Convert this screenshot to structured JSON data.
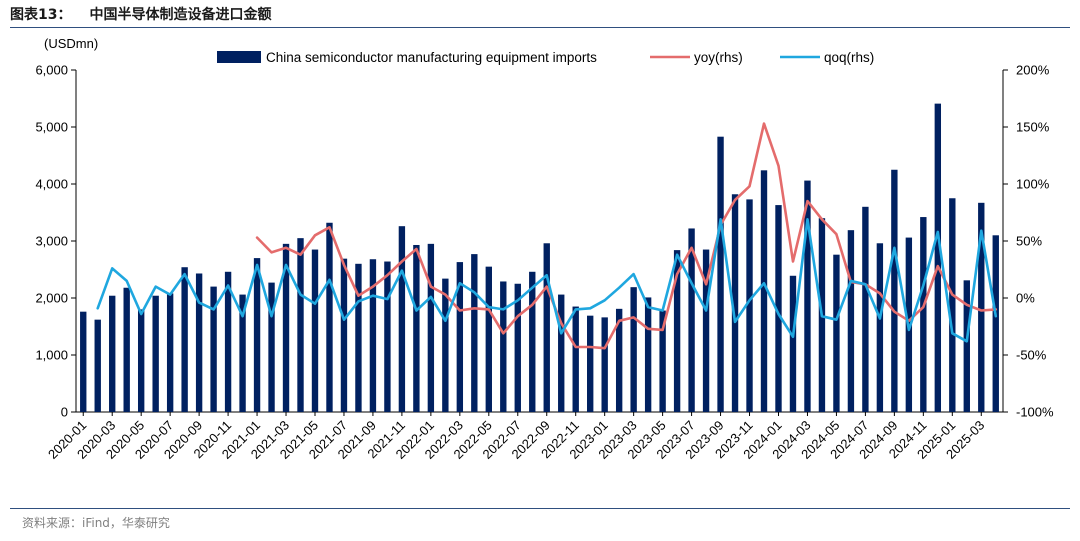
{
  "figure": {
    "label": "图表13：",
    "title": "中国半导体制造设备进口金额",
    "source": "资料来源：iFind，华泰研究"
  },
  "chart_data": {
    "type": "bar",
    "units_left": "(USDmn)",
    "x": [
      "2020-01",
      "2020-02",
      "2020-03",
      "2020-04",
      "2020-05",
      "2020-06",
      "2020-07",
      "2020-08",
      "2020-09",
      "2020-10",
      "2020-11",
      "2020-12",
      "2021-01",
      "2021-02",
      "2021-03",
      "2021-04",
      "2021-05",
      "2021-06",
      "2021-07",
      "2021-08",
      "2021-09",
      "2021-10",
      "2021-11",
      "2021-12",
      "2022-01",
      "2022-02",
      "2022-03",
      "2022-04",
      "2022-05",
      "2022-06",
      "2022-07",
      "2022-08",
      "2022-09",
      "2022-10",
      "2022-11",
      "2022-12",
      "2023-01",
      "2023-02",
      "2023-03",
      "2023-04",
      "2023-05",
      "2023-06",
      "2023-07",
      "2023-08",
      "2023-09",
      "2023-10",
      "2023-11",
      "2023-12",
      "2024-01",
      "2024-02",
      "2024-03",
      "2024-04",
      "2024-05",
      "2024-06",
      "2024-07",
      "2024-08",
      "2024-09",
      "2024-10",
      "2024-11",
      "2024-12",
      "2025-01",
      "2025-02",
      "2025-03",
      "2025-04"
    ],
    "x_tick_labels": [
      "2020-01",
      "2020-03",
      "2020-05",
      "2020-07",
      "2020-09",
      "2020-11",
      "2021-01",
      "2021-03",
      "2021-05",
      "2021-07",
      "2021-09",
      "2021-11",
      "2022-01",
      "2022-03",
      "2022-05",
      "2022-07",
      "2022-09",
      "2022-11",
      "2023-01",
      "2023-03",
      "2023-05",
      "2023-07",
      "2023-09",
      "2023-11",
      "2024-01",
      "2024-03",
      "2024-05",
      "2024-07",
      "2024-09",
      "2024-11",
      "2025-01",
      "2025-03"
    ],
    "y_left": {
      "min": 0,
      "max": 6000,
      "ticks": [
        "0",
        "1,000",
        "2,000",
        "3,000",
        "4,000",
        "5,000",
        "6,000"
      ]
    },
    "y_right": {
      "min": -100,
      "max": 200,
      "ticks": [
        "-100%",
        "-50%",
        "0%",
        "50%",
        "100%",
        "150%",
        "200%"
      ]
    },
    "grid": false,
    "legend_position": "top",
    "series": [
      {
        "name": "China semiconductor manufacturing equipment imports",
        "kind": "bar",
        "axis": "left",
        "color": "#002060",
        "values": [
          1760,
          1620,
          2040,
          2180,
          1800,
          2040,
          2080,
          2540,
          2430,
          2200,
          2460,
          2060,
          2700,
          2270,
          2950,
          3050,
          2850,
          3320,
          2690,
          2600,
          2680,
          2640,
          3260,
          2930,
          2950,
          2340,
          2630,
          2770,
          2550,
          2290,
          2250,
          2460,
          2960,
          2060,
          1850,
          1690,
          1660,
          1810,
          2190,
          2010,
          1780,
          2840,
          3220,
          2850,
          4830,
          3820,
          3730,
          4240,
          3630,
          2390,
          4060,
          3400,
          2760,
          3190,
          3600,
          2960,
          4250,
          3060,
          3420,
          5410,
          3750,
          2310,
          3670,
          3100
        ]
      },
      {
        "name": "yoy(rhs)",
        "kind": "line",
        "axis": "right",
        "color": "#E46C6C",
        "values": [
          null,
          null,
          null,
          null,
          null,
          null,
          null,
          null,
          null,
          null,
          null,
          null,
          53,
          40,
          44,
          38,
          55,
          62,
          29,
          2,
          10,
          20,
          32,
          43,
          10,
          3,
          -11,
          -9,
          -10,
          -31,
          -16,
          -6,
          10,
          -22,
          -43,
          -43,
          -44,
          -20,
          -17,
          -27,
          -28,
          21,
          44,
          12,
          64,
          86,
          98,
          153,
          116,
          32,
          85,
          69,
          56,
          14,
          12,
          4,
          -12,
          -20,
          -8,
          28,
          3,
          -6,
          -11,
          -10
        ]
      },
      {
        "name": "qoq(rhs)",
        "kind": "line",
        "axis": "right",
        "color": "#1FA7DF",
        "values": [
          null,
          -9,
          26,
          15,
          -14,
          10,
          3,
          21,
          -4,
          -10,
          11,
          -16,
          29,
          -16,
          29,
          3,
          -5,
          16,
          -19,
          -3,
          2,
          -1,
          24,
          -11,
          1,
          -20,
          13,
          5,
          -8,
          -10,
          -2,
          9,
          20,
          -31,
          -10,
          -9,
          -2,
          9,
          21,
          -8,
          -11,
          38,
          13,
          -11,
          69,
          -21,
          -2,
          13,
          -14,
          -34,
          69,
          -16,
          -19,
          15,
          12,
          -18,
          44,
          -28,
          11,
          58,
          -31,
          -38,
          59,
          -16
        ]
      }
    ]
  }
}
